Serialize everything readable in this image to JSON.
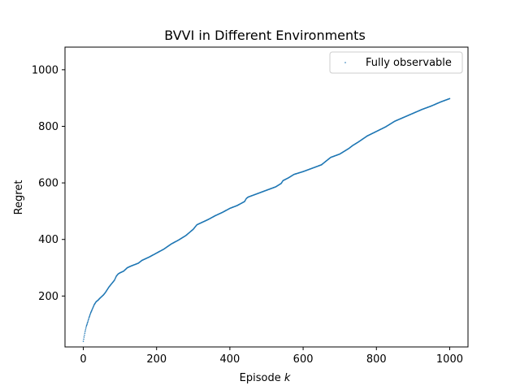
{
  "chart_data": {
    "type": "scatter",
    "title": "BVVI in Different Environments",
    "xlabel_prefix": "Episode ",
    "xlabel_var": "k",
    "ylabel": "Regret",
    "xlim": [
      -50,
      1050
    ],
    "ylim": [
      20,
      1080
    ],
    "xticks": [
      0,
      200,
      400,
      600,
      800,
      1000
    ],
    "yticks": [
      200,
      400,
      600,
      800,
      1000
    ],
    "grid": false,
    "legend_position": "top-right",
    "series": [
      {
        "name": "Fully observable",
        "color": "#1f77b4",
        "marker": "point",
        "points": [
          [
            0,
            40
          ],
          [
            2,
            55
          ],
          [
            5,
            75
          ],
          [
            8,
            92
          ],
          [
            12,
            108
          ],
          [
            16,
            125
          ],
          [
            20,
            140
          ],
          [
            25,
            155
          ],
          [
            30,
            170
          ],
          [
            35,
            180
          ],
          [
            40,
            185
          ],
          [
            45,
            192
          ],
          [
            50,
            198
          ],
          [
            55,
            204
          ],
          [
            60,
            212
          ],
          [
            65,
            222
          ],
          [
            70,
            232
          ],
          [
            75,
            240
          ],
          [
            80,
            248
          ],
          [
            85,
            256
          ],
          [
            90,
            270
          ],
          [
            95,
            278
          ],
          [
            100,
            282
          ],
          [
            110,
            288
          ],
          [
            120,
            300
          ],
          [
            130,
            306
          ],
          [
            150,
            316
          ],
          [
            160,
            326
          ],
          [
            180,
            338
          ],
          [
            200,
            352
          ],
          [
            220,
            366
          ],
          [
            240,
            384
          ],
          [
            260,
            398
          ],
          [
            280,
            414
          ],
          [
            300,
            436
          ],
          [
            310,
            452
          ],
          [
            320,
            458
          ],
          [
            340,
            470
          ],
          [
            360,
            484
          ],
          [
            380,
            496
          ],
          [
            400,
            510
          ],
          [
            420,
            520
          ],
          [
            440,
            534
          ],
          [
            445,
            545
          ],
          [
            450,
            550
          ],
          [
            475,
            562
          ],
          [
            500,
            574
          ],
          [
            525,
            586
          ],
          [
            540,
            598
          ],
          [
            545,
            608
          ],
          [
            560,
            618
          ],
          [
            575,
            630
          ],
          [
            600,
            640
          ],
          [
            625,
            652
          ],
          [
            650,
            664
          ],
          [
            675,
            690
          ],
          [
            700,
            702
          ],
          [
            725,
            722
          ],
          [
            735,
            732
          ],
          [
            750,
            744
          ],
          [
            775,
            766
          ],
          [
            800,
            782
          ],
          [
            825,
            798
          ],
          [
            835,
            806
          ],
          [
            850,
            818
          ],
          [
            875,
            832
          ],
          [
            900,
            846
          ],
          [
            925,
            860
          ],
          [
            950,
            872
          ],
          [
            975,
            886
          ],
          [
            1000,
            898
          ]
        ]
      }
    ]
  }
}
